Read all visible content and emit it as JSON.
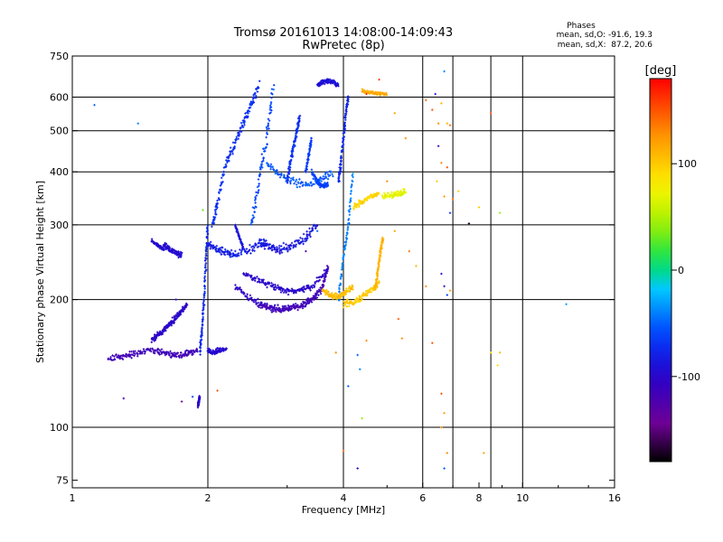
{
  "chart_data": {
    "type": "scatter",
    "title": "Tromsø 20161013 14:08:00-14:09:43",
    "subtitle": "RwPretec (8p)",
    "xlabel": "Frequency [MHz]",
    "ylabel": "Stationary phase Virtual Height [km]",
    "x_scale": "log",
    "y_scale": "log",
    "xlim": [
      1,
      16
    ],
    "ylim": [
      72,
      750
    ],
    "x_ticks": [
      1,
      2,
      4,
      6,
      8,
      10,
      16
    ],
    "x_tick_labels": [
      "1",
      "2",
      "4",
      "6",
      "8",
      "10",
      "16"
    ],
    "x_grid": [
      2,
      4,
      6,
      7,
      8.5,
      10
    ],
    "y_ticks": [
      75,
      100,
      200,
      300,
      400,
      500,
      600,
      750
    ],
    "y_tick_labels": [
      "75",
      "100",
      "200",
      "300",
      "400",
      "500",
      "600",
      "750"
    ],
    "y_grid": [
      100,
      200,
      300,
      400,
      500,
      600
    ],
    "grid": true,
    "stats": {
      "title": "Phases",
      "line1": "mean, sd,O: -91.6, 19.3",
      "line2": "mean, sd,X:  87.2, 20.6"
    },
    "colorbar": {
      "label": "[deg]",
      "range": [
        -180,
        180
      ],
      "ticks": [
        100,
        0,
        -100
      ],
      "tick_labels": [
        "100",
        "0",
        "-100"
      ]
    },
    "traces": [
      {
        "kind": "curve",
        "x": [
          1.2,
          1.3,
          1.4,
          1.5,
          1.6,
          1.7,
          1.8,
          1.9
        ],
        "y": [
          145,
          147,
          150,
          152,
          150,
          148,
          149,
          152
        ],
        "phase": -115,
        "spread": 0.012
      },
      {
        "kind": "curve",
        "x": [
          1.5,
          1.55,
          1.6,
          1.65,
          1.7,
          1.75,
          1.8
        ],
        "y": [
          160,
          165,
          170,
          175,
          182,
          188,
          195
        ],
        "phase": -100,
        "spread": 0.01
      },
      {
        "kind": "curve",
        "x": [
          1.6,
          1.65,
          1.7,
          1.75
        ],
        "y": [
          270,
          262,
          258,
          255
        ],
        "phase": -95,
        "spread": 0.01
      },
      {
        "kind": "curve",
        "x": [
          1.5,
          1.55,
          1.6
        ],
        "y": [
          275,
          268,
          262
        ],
        "phase": -95,
        "spread": 0.006
      },
      {
        "kind": "curve",
        "x": [
          1.92,
          1.94,
          1.96,
          1.98,
          2.0
        ],
        "y": [
          150,
          170,
          200,
          250,
          300
        ],
        "phase": -75,
        "spread": 0.008
      },
      {
        "kind": "curve",
        "x": [
          2.0,
          2.05,
          2.1,
          2.2
        ],
        "y": [
          152,
          150,
          151,
          153
        ],
        "phase": -95,
        "spread": 0.01
      },
      {
        "kind": "curve",
        "x": [
          2.05,
          2.1,
          2.2,
          2.3,
          2.4,
          2.5,
          2.6
        ],
        "y": [
          300,
          340,
          420,
          470,
          520,
          580,
          640
        ],
        "phase": -70,
        "spread": 0.015
      },
      {
        "kind": "curve",
        "x": [
          2.0,
          2.1,
          2.2,
          2.3,
          2.5,
          2.7
        ],
        "y": [
          270,
          262,
          258,
          255,
          262,
          275
        ],
        "phase": -80,
        "spread": 0.015
      },
      {
        "kind": "curve",
        "x": [
          2.3,
          2.5,
          2.7,
          3.0,
          3.3,
          3.6
        ],
        "y": [
          215,
          200,
          192,
          190,
          195,
          210
        ],
        "phase": -105,
        "spread": 0.012
      },
      {
        "kind": "curve",
        "x": [
          2.6,
          2.8,
          3.0,
          3.2,
          3.4,
          3.6,
          3.7
        ],
        "y": [
          195,
          190,
          190,
          193,
          200,
          215,
          240
        ],
        "phase": -118,
        "spread": 0.01
      },
      {
        "kind": "curve",
        "x": [
          2.4,
          2.6,
          2.8,
          3.0,
          3.2,
          3.4,
          3.7
        ],
        "y": [
          230,
          222,
          215,
          210,
          210,
          215,
          235
        ],
        "phase": -100,
        "spread": 0.012
      },
      {
        "kind": "curve",
        "x": [
          2.5,
          2.6,
          2.7,
          2.8
        ],
        "y": [
          300,
          380,
          480,
          640
        ],
        "phase": -60,
        "spread": 0.02
      },
      {
        "kind": "curve",
        "x": [
          2.6,
          2.75,
          2.9,
          3.1,
          3.3,
          3.5
        ],
        "y": [
          275,
          265,
          262,
          268,
          280,
          300
        ],
        "phase": -85,
        "spread": 0.015
      },
      {
        "kind": "curve",
        "x": [
          2.7,
          2.9,
          3.2,
          3.5,
          3.8
        ],
        "y": [
          420,
          390,
          375,
          380,
          400
        ],
        "phase": -55,
        "spread": 0.015
      },
      {
        "kind": "curve",
        "x": [
          3.0,
          3.05,
          3.1,
          3.15,
          3.2
        ],
        "y": [
          380,
          420,
          460,
          500,
          540
        ],
        "phase": -70,
        "spread": 0.01
      },
      {
        "kind": "curve",
        "x": [
          3.3,
          3.35,
          3.4
        ],
        "y": [
          400,
          440,
          480
        ],
        "phase": -65,
        "spread": 0.008
      },
      {
        "kind": "curve",
        "x": [
          3.4,
          3.5,
          3.6,
          3.7
        ],
        "y": [
          400,
          380,
          370,
          375
        ],
        "phase": -60,
        "spread": 0.01
      },
      {
        "kind": "curve",
        "x": [
          3.9,
          3.95,
          4.0,
          4.05,
          4.1
        ],
        "y": [
          380,
          420,
          480,
          550,
          600
        ],
        "phase": -75,
        "spread": 0.01
      },
      {
        "kind": "curve",
        "x": [
          3.9,
          4.0,
          4.1,
          4.2
        ],
        "y": [
          200,
          250,
          300,
          400
        ],
        "phase": -40,
        "spread": 0.01
      },
      {
        "kind": "curve",
        "x": [
          3.5,
          3.6,
          3.7,
          3.8,
          3.9
        ],
        "y": [
          640,
          650,
          655,
          650,
          640
        ],
        "phase": -90,
        "spread": 0.008
      },
      {
        "kind": "curve",
        "x": [
          3.6,
          3.75,
          3.9,
          4.05,
          4.2
        ],
        "y": [
          210,
          205,
          203,
          208,
          215
        ],
        "phase": 105,
        "spread": 0.01
      },
      {
        "kind": "curve",
        "x": [
          4.0,
          4.2,
          4.4,
          4.6,
          4.8
        ],
        "y": [
          195,
          197,
          203,
          210,
          220
        ],
        "phase": 100,
        "spread": 0.012
      },
      {
        "kind": "curve",
        "x": [
          4.7,
          4.75,
          4.8,
          4.85,
          4.9
        ],
        "y": [
          210,
          225,
          245,
          265,
          280
        ],
        "phase": 110,
        "spread": 0.008
      },
      {
        "kind": "curve",
        "x": [
          4.2,
          4.4,
          4.6,
          4.8
        ],
        "y": [
          330,
          340,
          350,
          355
        ],
        "phase": 95,
        "spread": 0.01
      },
      {
        "kind": "curve",
        "x": [
          4.9,
          5.1,
          5.3,
          5.5
        ],
        "y": [
          350,
          352,
          355,
          360
        ],
        "phase": 70,
        "spread": 0.01
      },
      {
        "kind": "curve",
        "x": [
          4.4,
          4.6,
          4.8,
          5.0
        ],
        "y": [
          620,
          615,
          612,
          610
        ],
        "phase": 115,
        "spread": 0.006
      },
      {
        "kind": "curve",
        "x": [
          1.9,
          1.91,
          1.92
        ],
        "y": [
          112,
          115,
          118
        ],
        "phase": -100,
        "spread": 0.006
      },
      {
        "kind": "curve",
        "x": [
          2.3,
          2.35,
          2.4
        ],
        "y": [
          300,
          280,
          265
        ],
        "phase": -90,
        "spread": 0.006
      }
    ],
    "points": [
      {
        "x": 1.12,
        "y": 575,
        "phase": -50
      },
      {
        "x": 1.4,
        "y": 520,
        "phase": -40
      },
      {
        "x": 1.3,
        "y": 117,
        "phase": -120
      },
      {
        "x": 1.7,
        "y": 200,
        "phase": -90
      },
      {
        "x": 1.75,
        "y": 115,
        "phase": -140
      },
      {
        "x": 1.85,
        "y": 118,
        "phase": -60
      },
      {
        "x": 2.1,
        "y": 122,
        "phase": 150
      },
      {
        "x": 1.95,
        "y": 325,
        "phase": 30
      },
      {
        "x": 4.5,
        "y": 610,
        "phase": 165
      },
      {
        "x": 4.8,
        "y": 660,
        "phase": 160
      },
      {
        "x": 5.2,
        "y": 550,
        "phase": 120
      },
      {
        "x": 5.5,
        "y": 480,
        "phase": 130
      },
      {
        "x": 6.1,
        "y": 590,
        "phase": 140
      },
      {
        "x": 6.3,
        "y": 560,
        "phase": 150
      },
      {
        "x": 6.4,
        "y": 610,
        "phase": -90
      },
      {
        "x": 6.5,
        "y": 520,
        "phase": 130
      },
      {
        "x": 6.6,
        "y": 580,
        "phase": 110
      },
      {
        "x": 6.7,
        "y": 690,
        "phase": -40
      },
      {
        "x": 6.8,
        "y": 520,
        "phase": 110
      },
      {
        "x": 6.9,
        "y": 515,
        "phase": 140
      },
      {
        "x": 6.5,
        "y": 460,
        "phase": -110
      },
      {
        "x": 6.6,
        "y": 420,
        "phase": 130
      },
      {
        "x": 6.8,
        "y": 410,
        "phase": 150
      },
      {
        "x": 6.45,
        "y": 380,
        "phase": 100
      },
      {
        "x": 6.7,
        "y": 350,
        "phase": 120
      },
      {
        "x": 7.0,
        "y": 345,
        "phase": 140
      },
      {
        "x": 7.2,
        "y": 360,
        "phase": 100
      },
      {
        "x": 6.9,
        "y": 320,
        "phase": -70
      },
      {
        "x": 7.6,
        "y": 302,
        "phase": -170
      },
      {
        "x": 8.0,
        "y": 330,
        "phase": 100
      },
      {
        "x": 8.5,
        "y": 550,
        "phase": 150
      },
      {
        "x": 8.9,
        "y": 320,
        "phase": 40
      },
      {
        "x": 6.6,
        "y": 230,
        "phase": -100
      },
      {
        "x": 6.7,
        "y": 215,
        "phase": -110
      },
      {
        "x": 6.8,
        "y": 205,
        "phase": -60
      },
      {
        "x": 6.1,
        "y": 215,
        "phase": 130
      },
      {
        "x": 6.9,
        "y": 210,
        "phase": 120
      },
      {
        "x": 5.8,
        "y": 240,
        "phase": 110
      },
      {
        "x": 6.3,
        "y": 158,
        "phase": 150
      },
      {
        "x": 6.6,
        "y": 120,
        "phase": 150
      },
      {
        "x": 6.7,
        "y": 108,
        "phase": 120
      },
      {
        "x": 6.6,
        "y": 100,
        "phase": 130
      },
      {
        "x": 6.7,
        "y": 80,
        "phase": -50
      },
      {
        "x": 6.8,
        "y": 87,
        "phase": 130
      },
      {
        "x": 8.5,
        "y": 150,
        "phase": 90
      },
      {
        "x": 8.9,
        "y": 150,
        "phase": 110
      },
      {
        "x": 8.8,
        "y": 140,
        "phase": 90
      },
      {
        "x": 8.2,
        "y": 87,
        "phase": 120
      },
      {
        "x": 12.5,
        "y": 195,
        "phase": -30
      },
      {
        "x": 3.85,
        "y": 150,
        "phase": 130
      },
      {
        "x": 4.3,
        "y": 148,
        "phase": -50
      },
      {
        "x": 4.35,
        "y": 137,
        "phase": -40
      },
      {
        "x": 4.3,
        "y": 80,
        "phase": -110
      },
      {
        "x": 4.5,
        "y": 160,
        "phase": 130
      },
      {
        "x": 4.4,
        "y": 105,
        "phase": 40
      },
      {
        "x": 4.0,
        "y": 88,
        "phase": 150
      },
      {
        "x": 4.1,
        "y": 125,
        "phase": -50
      },
      {
        "x": 5.4,
        "y": 162,
        "phase": 130
      },
      {
        "x": 5.3,
        "y": 180,
        "phase": 150
      },
      {
        "x": 5.0,
        "y": 380,
        "phase": 130
      },
      {
        "x": 5.2,
        "y": 290,
        "phase": 120
      },
      {
        "x": 5.6,
        "y": 260,
        "phase": 140
      },
      {
        "x": 3.5,
        "y": 290,
        "phase": -50
      },
      {
        "x": 3.3,
        "y": 260,
        "phase": -120
      }
    ]
  }
}
